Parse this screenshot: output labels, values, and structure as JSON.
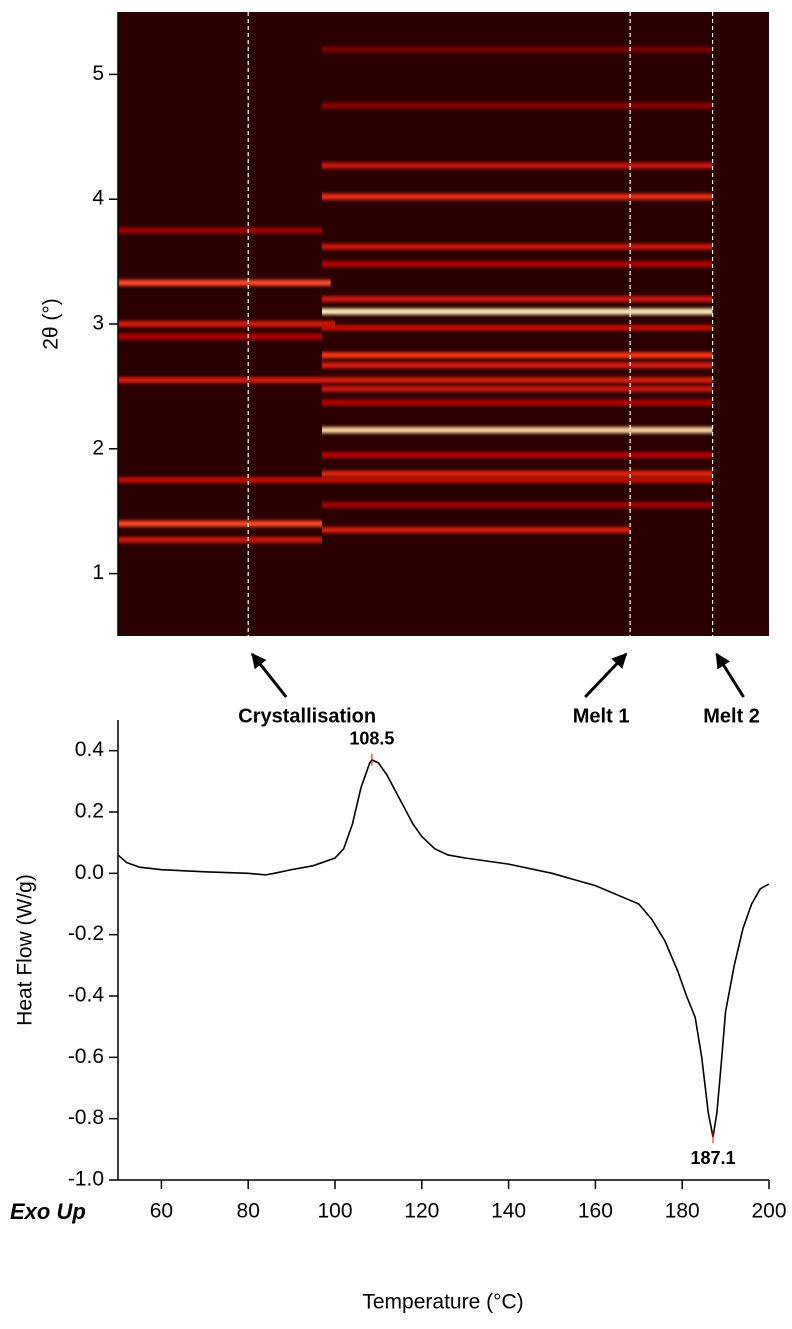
{
  "chart_data": [
    {
      "type": "heatmap",
      "y_label": "2θ (°)",
      "xlim": [
        50,
        200
      ],
      "ylim": [
        0.5,
        5.5
      ],
      "yticks": [
        1,
        2,
        3,
        4,
        5
      ],
      "colormap": [
        "#2a0000",
        "#b00000",
        "#ff3a1a",
        "#fff2b8"
      ],
      "bands": [
        {
          "two_theta": 3.33,
          "start": 50,
          "end": 99,
          "intensity": 0.7
        },
        {
          "two_theta": 3.0,
          "start": 50,
          "end": 100,
          "intensity": 0.5
        },
        {
          "two_theta": 1.4,
          "start": 50,
          "end": 97,
          "intensity": 0.7
        },
        {
          "two_theta": 1.27,
          "start": 50,
          "end": 97,
          "intensity": 0.45
        },
        {
          "two_theta": 2.55,
          "start": 50,
          "end": 187,
          "intensity": 0.5
        },
        {
          "two_theta": 2.9,
          "start": 50,
          "end": 97,
          "intensity": 0.35
        },
        {
          "two_theta": 3.75,
          "start": 50,
          "end": 97,
          "intensity": 0.3
        },
        {
          "two_theta": 1.75,
          "start": 50,
          "end": 187,
          "intensity": 0.4
        },
        {
          "two_theta": 3.1,
          "start": 97,
          "end": 187,
          "intensity": 1.0
        },
        {
          "two_theta": 2.15,
          "start": 97,
          "end": 187,
          "intensity": 0.95
        },
        {
          "two_theta": 4.02,
          "start": 97,
          "end": 187,
          "intensity": 0.6
        },
        {
          "two_theta": 2.75,
          "start": 97,
          "end": 187,
          "intensity": 0.65
        },
        {
          "two_theta": 2.67,
          "start": 97,
          "end": 187,
          "intensity": 0.5
        },
        {
          "two_theta": 3.62,
          "start": 97,
          "end": 187,
          "intensity": 0.45
        },
        {
          "two_theta": 1.35,
          "start": 97,
          "end": 168,
          "intensity": 0.5
        },
        {
          "two_theta": 1.8,
          "start": 97,
          "end": 187,
          "intensity": 0.55
        },
        {
          "two_theta": 2.48,
          "start": 97,
          "end": 187,
          "intensity": 0.45
        },
        {
          "two_theta": 4.27,
          "start": 97,
          "end": 187,
          "intensity": 0.45
        },
        {
          "two_theta": 3.2,
          "start": 97,
          "end": 187,
          "intensity": 0.45
        },
        {
          "two_theta": 2.37,
          "start": 97,
          "end": 187,
          "intensity": 0.35
        },
        {
          "two_theta": 1.55,
          "start": 97,
          "end": 187,
          "intensity": 0.3
        },
        {
          "two_theta": 3.48,
          "start": 97,
          "end": 187,
          "intensity": 0.35
        },
        {
          "two_theta": 2.97,
          "start": 97,
          "end": 187,
          "intensity": 0.4
        },
        {
          "two_theta": 4.75,
          "start": 97,
          "end": 187,
          "intensity": 0.25
        },
        {
          "two_theta": 5.2,
          "start": 97,
          "end": 187,
          "intensity": 0.2
        },
        {
          "two_theta": 1.95,
          "start": 97,
          "end": 187,
          "intensity": 0.35
        }
      ],
      "annotations": [
        {
          "text": "Crystallisation",
          "x": 80
        },
        {
          "text": "Melt 1",
          "x": 168
        },
        {
          "text": "Melt 2",
          "x": 187
        }
      ]
    },
    {
      "type": "line",
      "x_label": "Temperature (°C)",
      "y_label": "Heat Flow (W/g)",
      "note": "Exo Up",
      "color": "#000000",
      "xlim": [
        50,
        200
      ],
      "ylim": [
        -1.0,
        0.5
      ],
      "xticks": [
        60,
        80,
        100,
        120,
        140,
        160,
        180,
        200
      ],
      "yticks": [
        0.4,
        0.2,
        {
          "value": 0,
          "label": "0.0"
        },
        -0.2,
        -0.4,
        -0.6,
        -0.8,
        {
          "value": -1.0,
          "label": "-1.0"
        }
      ],
      "x": [
        50,
        52,
        55,
        60,
        70,
        80,
        84,
        86,
        90,
        95,
        100,
        102,
        104,
        106,
        108,
        108.5,
        110,
        112,
        115,
        118,
        120,
        123,
        126,
        130,
        140,
        150,
        155,
        160,
        165,
        170,
        173,
        176,
        179,
        181,
        183,
        184.5,
        186,
        187.1,
        188,
        189,
        190,
        192,
        194,
        196,
        198,
        200
      ],
      "values": [
        0.06,
        0.035,
        0.02,
        0.012,
        0.005,
        0.0,
        -0.005,
        0.0,
        0.012,
        0.025,
        0.05,
        0.08,
        0.16,
        0.28,
        0.36,
        0.37,
        0.36,
        0.32,
        0.24,
        0.16,
        0.12,
        0.08,
        0.06,
        0.05,
        0.03,
        0.0,
        -0.02,
        -0.04,
        -0.07,
        -0.1,
        -0.15,
        -0.22,
        -0.32,
        -0.4,
        -0.47,
        -0.6,
        -0.78,
        -0.86,
        -0.78,
        -0.62,
        -0.45,
        -0.3,
        -0.18,
        -0.1,
        -0.05,
        -0.035
      ],
      "peak_labels": [
        {
          "text": "108.5",
          "x": 108.5,
          "y": 0.37
        },
        {
          "text": "187.1",
          "x": 187.1,
          "y": -0.86
        }
      ],
      "peak_color": "#ff0000"
    }
  ]
}
